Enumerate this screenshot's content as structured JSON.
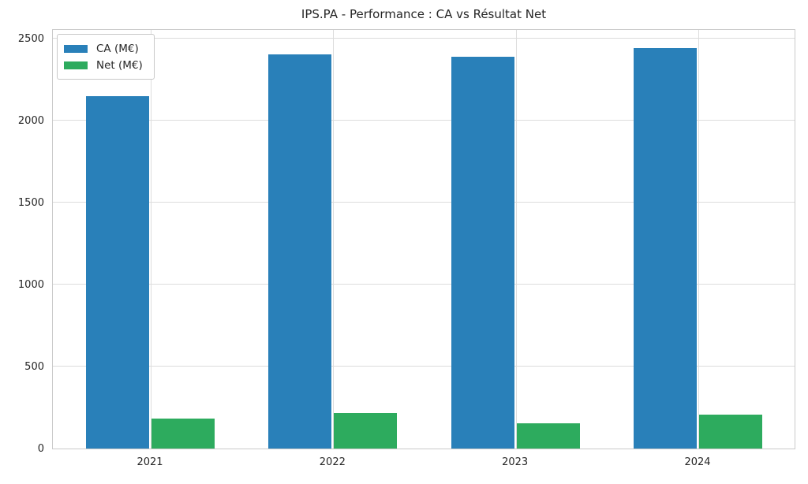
{
  "chart_data": {
    "type": "bar",
    "title": "IPS.PA - Performance : CA vs Résultat Net",
    "categories": [
      "2021",
      "2022",
      "2023",
      "2024"
    ],
    "series": [
      {
        "name": "CA (M€)",
        "color": "#2980b9",
        "values": [
          2147,
          2405,
          2390,
          2440
        ]
      },
      {
        "name": "Net (M€)",
        "color": "#2dab5e",
        "values": [
          183,
          215,
          155,
          205
        ]
      }
    ],
    "xlabel": "",
    "ylabel": "",
    "ylim": [
      0,
      2562
    ],
    "yticks": [
      0,
      500,
      1000,
      1500,
      2000,
      2500
    ],
    "grid": "both",
    "legend_position": "upper-left"
  },
  "style": {
    "grid_color": "#dcdcdc",
    "spine_color": "#c9c9c9",
    "text_color": "#262626",
    "background": "#ffffff"
  }
}
